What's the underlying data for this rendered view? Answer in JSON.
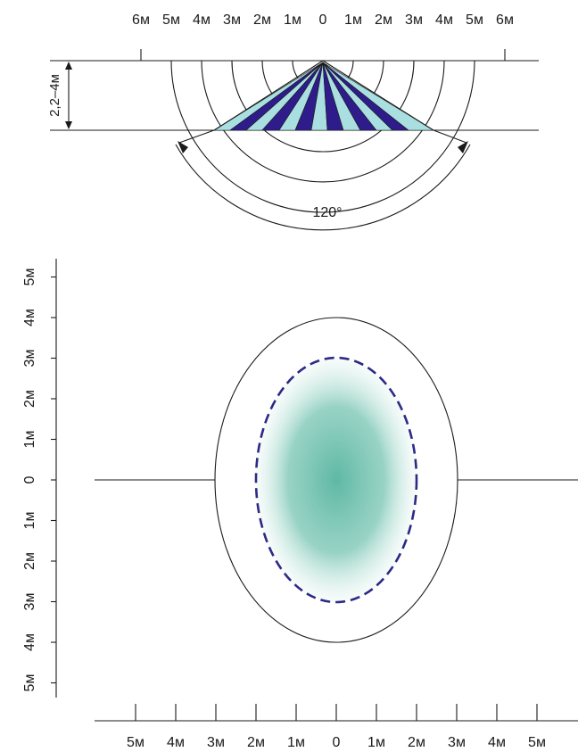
{
  "side_view": {
    "distance_labels": [
      "6м",
      "5м",
      "4м",
      "3м",
      "2м",
      "1м",
      "0",
      "1м",
      "2м",
      "3м",
      "4м",
      "5м",
      "6м"
    ],
    "height_label": "2,2–4м",
    "angle_label": "120°"
  },
  "top_view": {
    "y_labels": [
      "5м",
      "4м",
      "3м",
      "2м",
      "1м",
      "0",
      "1м",
      "2м",
      "3м",
      "4м",
      "5м"
    ],
    "x_labels": [
      "5м",
      "4м",
      "3м",
      "2м",
      "1м",
      "0",
      "1м",
      "2м",
      "3м",
      "4м",
      "5м"
    ]
  },
  "colors": {
    "line": "#1a1a1a",
    "dark_ray": "#2d1c8a",
    "light_ray": "#a9dfe0",
    "teal_zone": "#6cbcaa",
    "dash_boundary": "#2c2a85"
  }
}
